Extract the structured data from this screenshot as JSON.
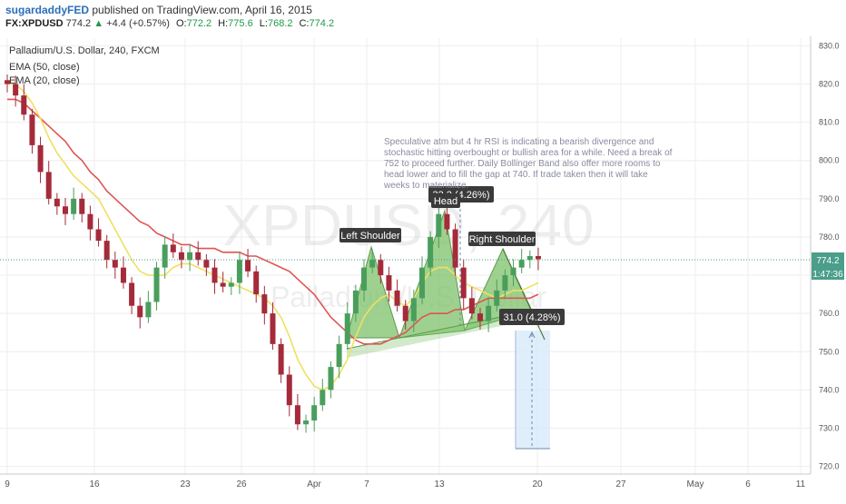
{
  "header": {
    "author": "sugardaddyFED",
    "published": "published on TradingView.com, April 16, 2015",
    "symbol": "FX:XPDUSD",
    "last": "774.2",
    "change_arrow": "▲",
    "change": "+4.4 (+0.57%)",
    "open_label": "O:",
    "open": "772.2",
    "high_label": "H:",
    "high": "775.6",
    "low_label": "L:",
    "low": "768.2",
    "close_label": "C:",
    "close": "774.2"
  },
  "chart": {
    "legend_title": "Palladium/U.S. Dollar, 240, FXCM",
    "indicators": [
      "EMA (50, close)",
      "EMA (20, close)"
    ],
    "watermark_big": "XPDUSD, 240",
    "watermark_small": "Palladium/U.S. Dollar",
    "price_tag": "774.2",
    "countdown_tag": "1:47:36",
    "annotation": "Speculative atm but 4 hr RSI is indicating a bearish divergence and stochastic hitting overbought or bullish area for a while. Need a break of 752 to proceed further. Daily Bollinger Band also offer more rooms to head lower and to fill the gap at 740. If trade taken then it will take weeks to materialize.",
    "labels": {
      "left_shoulder": "Left Shoulder",
      "head": "Head",
      "right_shoulder": "Right Shoulder",
      "head_measure": "33.2 (4.26%)",
      "target_measure": "31.0 (4.28%)"
    },
    "colors": {
      "up": "#4a9e5c",
      "down": "#a52a3a",
      "ema50": "#e05454",
      "ema20": "#f0e060",
      "pattern_fill": "#7dc26b",
      "target_fill": "#d6e8fa",
      "price_line": "#4a9e8a"
    }
  },
  "chart_data": {
    "type": "candlestick",
    "title": "Palladium/U.S. Dollar, 240, FXCM",
    "xlabel": "",
    "ylabel": "",
    "ylim": [
      718,
      832
    ],
    "y_ticks": [
      720.0,
      730.0,
      740.0,
      750.0,
      760.0,
      770.0,
      780.0,
      790.0,
      800.0,
      810.0,
      820.0,
      830.0
    ],
    "x_ticks": [
      "9",
      "16",
      "23",
      "26",
      "Apr",
      "7",
      "13",
      "20",
      "27",
      "May",
      "6",
      "11"
    ],
    "last_price": 774.2,
    "series": [
      {
        "name": "EMA (50, close)",
        "values": [
          816,
          816,
          815,
          813,
          811,
          809,
          807,
          805,
          802,
          800,
          797,
          795,
          792,
          790,
          788,
          786,
          784,
          783,
          781,
          780,
          779,
          778,
          778,
          777,
          777,
          777,
          776,
          776,
          776,
          775,
          775,
          774,
          773,
          772,
          771,
          769,
          767,
          765,
          762,
          759,
          757,
          755,
          753,
          752,
          752,
          752,
          753,
          754,
          755,
          757,
          759,
          760,
          760,
          760,
          761,
          761,
          762,
          763,
          764,
          764,
          764,
          764,
          764,
          764,
          765
        ]
      },
      {
        "name": "EMA (20, close)",
        "values": [
          820,
          820,
          818,
          815,
          811,
          806,
          802,
          799,
          796,
          794,
          792,
          790,
          786,
          782,
          778,
          774,
          771,
          770,
          770,
          770,
          772,
          773,
          773,
          772,
          771,
          770,
          769,
          768,
          767,
          766,
          765,
          764,
          762,
          759,
          754,
          748,
          744,
          741,
          740,
          741,
          744,
          748,
          754,
          759,
          762,
          764,
          765,
          763,
          762,
          764,
          768,
          771,
          772,
          772,
          770,
          768,
          767,
          766,
          765,
          764,
          765,
          766,
          766,
          767,
          768
        ]
      }
    ],
    "closes": [
      820,
      817,
      812,
      804,
      797,
      790,
      788,
      786,
      790,
      786,
      782,
      779,
      774,
      772,
      768,
      762,
      759,
      763,
      772,
      778,
      776,
      774,
      776,
      774,
      772,
      768,
      767,
      768,
      774,
      771,
      765,
      760,
      752,
      744,
      736,
      731,
      732,
      736,
      740,
      746,
      752,
      760,
      766,
      772,
      774,
      770,
      766,
      762,
      758,
      764,
      772,
      780,
      786,
      782,
      772,
      764,
      760,
      758,
      762,
      766,
      770,
      772,
      774,
      775,
      774.2
    ],
    "annotations": {
      "pattern": "Head and Shoulders",
      "head_move": 33.2,
      "head_move_pct": 4.26,
      "target_move": 31.0,
      "target_move_pct": 4.28,
      "neckline_break_level": 752,
      "gap_level": 740
    }
  }
}
